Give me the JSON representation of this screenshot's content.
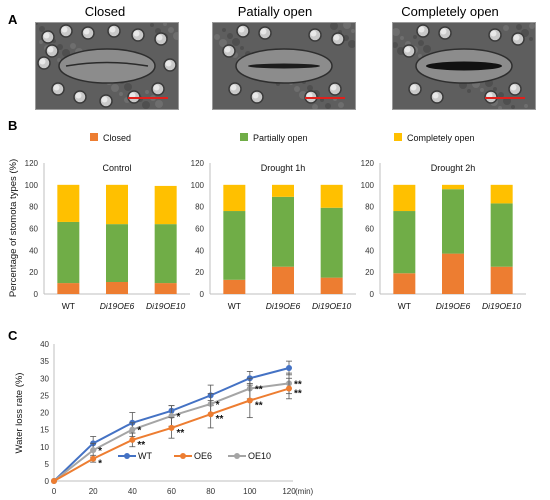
{
  "panels": {
    "a": "A",
    "b": "B",
    "c": "C"
  },
  "micrographs": [
    {
      "title": "Closed",
      "state": "closed"
    },
    {
      "title": "Patially open",
      "state": "partial"
    },
    {
      "title": "Completely open",
      "state": "open"
    }
  ],
  "colors": {
    "closed": "#ed7d31",
    "partial": "#70ad47",
    "open": "#ffc000",
    "wt": "#4472c4",
    "oe6": "#ed7d31",
    "oe10": "#a5a5a5",
    "scalebar": "#e0201c"
  },
  "chart_data": [
    {
      "type": "bar",
      "stacked": true,
      "ylabel": "Percentage of stomota types (%)",
      "legend": [
        "Closed",
        "Partially open",
        "Completely open"
      ],
      "subcharts": [
        {
          "title": "Control",
          "categories": [
            "WT",
            "Di19OE6",
            "Di19OE10"
          ],
          "ylim": [
            0,
            120
          ],
          "yticks": [
            0,
            20,
            40,
            60,
            80,
            100,
            120
          ],
          "series": [
            {
              "name": "Closed",
              "values": [
                10,
                11,
                10
              ]
            },
            {
              "name": "Partially open",
              "values": [
                56,
                53,
                54
              ]
            },
            {
              "name": "Completely open",
              "values": [
                34,
                36,
                35
              ]
            }
          ]
        },
        {
          "title": "Drought 1h",
          "categories": [
            "WT",
            "Di19OE6",
            "Di19OE10"
          ],
          "ylim": [
            0,
            120
          ],
          "yticks": [
            0,
            20,
            40,
            60,
            80,
            100,
            120
          ],
          "series": [
            {
              "name": "Closed",
              "values": [
                13,
                25,
                15
              ]
            },
            {
              "name": "Partially open",
              "values": [
                63,
                64,
                64
              ]
            },
            {
              "name": "Completely open",
              "values": [
                24,
                11,
                21
              ]
            }
          ]
        },
        {
          "title": "Drought 2h",
          "categories": [
            "WT",
            "Di19OE6",
            "Di19OE10"
          ],
          "ylim": [
            0,
            120
          ],
          "yticks": [
            0,
            20,
            40,
            60,
            80,
            100,
            120
          ],
          "series": [
            {
              "name": "Closed",
              "values": [
                19,
                37,
                25
              ]
            },
            {
              "name": "Partially open",
              "values": [
                57,
                59,
                58
              ]
            },
            {
              "name": "Completely open",
              "values": [
                24,
                4,
                17
              ]
            }
          ]
        }
      ]
    },
    {
      "type": "line",
      "xlabel": "(min)",
      "ylabel": "Water loss rate (%)",
      "x": [
        0,
        20,
        40,
        60,
        80,
        100,
        120
      ],
      "xticks": [
        0,
        20,
        40,
        60,
        80,
        100,
        120
      ],
      "ylim": [
        0,
        40
      ],
      "yticks": [
        0,
        5,
        10,
        15,
        20,
        25,
        30,
        35,
        40
      ],
      "series": [
        {
          "name": "WT",
          "values": [
            0,
            11,
            17,
            20.5,
            25,
            30,
            33
          ],
          "err": [
            0,
            2,
            3,
            1.5,
            3,
            2,
            2
          ]
        },
        {
          "name": "OE6",
          "values": [
            0,
            6.5,
            12,
            15.5,
            19.5,
            23.5,
            27
          ],
          "err": [
            0,
            1,
            2,
            3,
            4,
            5,
            3
          ]
        },
        {
          "name": "OE10",
          "values": [
            0,
            9,
            15,
            19,
            22.5,
            27,
            28.5
          ],
          "err": [
            0,
            2,
            2,
            3,
            3,
            3,
            3
          ]
        }
      ],
      "significance": [
        {
          "x": 20,
          "oe10": "*",
          "oe6": "*"
        },
        {
          "x": 40,
          "oe10": "*",
          "oe6": "**"
        },
        {
          "x": 60,
          "oe10": "*",
          "oe6": "**"
        },
        {
          "x": 80,
          "oe10": "*",
          "oe6": "**"
        },
        {
          "x": 100,
          "oe10": "**",
          "oe6": "**"
        },
        {
          "x": 120,
          "oe10": "**",
          "oe6": "**"
        }
      ]
    }
  ]
}
